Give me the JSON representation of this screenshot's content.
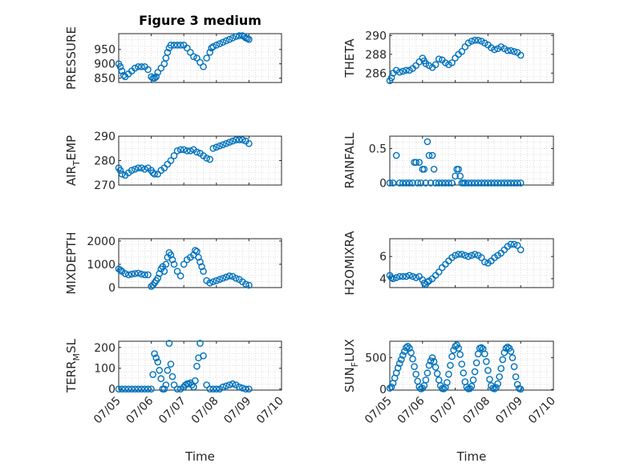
{
  "figure": {
    "title": "Figure 3 medium",
    "xlabel": "Time",
    "marker_color": "#0072BD",
    "xticks": [
      "07/05",
      "07/06",
      "07/07",
      "07/08",
      "07/09",
      "07/10"
    ],
    "xlim": [
      0,
      5
    ]
  },
  "chart_data": [
    {
      "type": "scatter",
      "ylabel": "PRESSURE",
      "ylim": [
        835,
        1005
      ],
      "yticks": [
        850,
        900,
        950
      ],
      "x": [
        0.0,
        0.05,
        0.1,
        0.15,
        0.2,
        0.3,
        0.4,
        0.5,
        0.6,
        0.7,
        0.8,
        0.9,
        1.0,
        1.05,
        1.1,
        1.15,
        1.2,
        1.3,
        1.4,
        1.45,
        1.5,
        1.55,
        1.6,
        1.7,
        1.8,
        1.9,
        2.0,
        2.1,
        2.2,
        2.3,
        2.4,
        2.5,
        2.6,
        2.7,
        2.8,
        2.85,
        2.9,
        3.0,
        3.1,
        3.2,
        3.3,
        3.4,
        3.5,
        3.6,
        3.7,
        3.8,
        3.85,
        3.9,
        3.95,
        4.0
      ],
      "y": [
        900,
        890,
        875,
        860,
        855,
        865,
        875,
        885,
        890,
        890,
        890,
        880,
        855,
        850,
        850,
        855,
        870,
        885,
        900,
        920,
        940,
        955,
        965,
        965,
        965,
        965,
        965,
        955,
        940,
        925,
        920,
        905,
        890,
        920,
        940,
        955,
        960,
        965,
        970,
        975,
        980,
        985,
        990,
        995,
        998,
        998,
        995,
        990,
        988,
        985
      ]
    },
    {
      "type": "scatter",
      "ylabel": "THETA",
      "ylim": [
        285.0,
        290.2
      ],
      "yticks": [
        286,
        288,
        290
      ],
      "x": [
        0.0,
        0.05,
        0.1,
        0.2,
        0.3,
        0.4,
        0.5,
        0.6,
        0.7,
        0.8,
        0.9,
        1.0,
        1.05,
        1.1,
        1.2,
        1.3,
        1.4,
        1.5,
        1.6,
        1.7,
        1.8,
        1.9,
        2.0,
        2.1,
        2.2,
        2.3,
        2.4,
        2.5,
        2.6,
        2.7,
        2.8,
        2.9,
        3.0,
        3.1,
        3.2,
        3.3,
        3.4,
        3.5,
        3.6,
        3.7,
        3.8,
        3.9,
        4.0
      ],
      "y": [
        285.2,
        285.5,
        286.0,
        286.3,
        286.1,
        286.2,
        286.3,
        286.3,
        286.5,
        286.8,
        287.2,
        287.6,
        287.3,
        287.0,
        286.8,
        286.6,
        286.9,
        287.5,
        287.4,
        287.1,
        286.9,
        287.1,
        287.6,
        288.0,
        288.3,
        288.8,
        289.2,
        289.4,
        289.5,
        289.5,
        289.4,
        289.2,
        289.0,
        288.7,
        288.5,
        288.6,
        288.8,
        288.6,
        288.4,
        288.4,
        288.3,
        288.2,
        287.9
      ]
    },
    {
      "type": "scatter",
      "ylabel": "AIR_TEMP",
      "ylim": [
        270,
        290
      ],
      "yticks": [
        270,
        280,
        290
      ],
      "x": [
        0.0,
        0.05,
        0.1,
        0.2,
        0.3,
        0.4,
        0.5,
        0.6,
        0.7,
        0.8,
        0.9,
        1.0,
        1.05,
        1.1,
        1.2,
        1.3,
        1.4,
        1.5,
        1.6,
        1.7,
        1.8,
        1.9,
        2.0,
        2.1,
        2.2,
        2.3,
        2.4,
        2.5,
        2.6,
        2.7,
        2.8,
        2.9,
        3.0,
        3.1,
        3.2,
        3.3,
        3.4,
        3.5,
        3.6,
        3.7,
        3.8,
        3.9,
        4.0
      ],
      "y": [
        277,
        276,
        274.5,
        274,
        275,
        276,
        276.5,
        277,
        277,
        276.5,
        277,
        276,
        275,
        274.5,
        274.5,
        276,
        277,
        278.5,
        280,
        282,
        284,
        284.5,
        284.5,
        284,
        284,
        284.5,
        283.5,
        283,
        282,
        281,
        280.5,
        285,
        285.5,
        286,
        286.5,
        287,
        287.5,
        288,
        288.5,
        288.5,
        288.5,
        288,
        287
      ]
    },
    {
      "type": "scatter",
      "ylabel": "RAINFALL",
      "ylim": [
        -0.03,
        0.68
      ],
      "yticks": [
        0,
        0.5
      ],
      "x": [
        0.0,
        0.1,
        0.2,
        0.3,
        0.4,
        0.5,
        0.6,
        0.7,
        0.75,
        0.8,
        0.85,
        0.9,
        0.95,
        1.0,
        1.05,
        1.1,
        1.15,
        1.2,
        1.25,
        1.3,
        1.35,
        1.4,
        1.5,
        1.6,
        1.7,
        1.8,
        1.9,
        2.0,
        2.05,
        2.1,
        2.15,
        2.2,
        2.25,
        2.3,
        2.4,
        2.5,
        2.6,
        2.7,
        2.8,
        2.9,
        3.0,
        3.1,
        3.2,
        3.3,
        3.4,
        3.5,
        3.6,
        3.7,
        3.8,
        3.9,
        4.0
      ],
      "y": [
        0,
        0,
        0.4,
        0,
        0,
        0,
        0,
        0,
        0.3,
        0.3,
        0,
        0.3,
        0,
        0.2,
        0.2,
        0,
        0.6,
        0.4,
        0,
        0.4,
        0.2,
        0,
        0,
        0,
        0,
        0,
        0,
        0.1,
        0.2,
        0.2,
        0.1,
        0,
        0,
        0,
        0,
        0,
        0,
        0,
        0,
        0,
        0,
        0,
        0,
        0,
        0,
        0,
        0,
        0,
        0,
        0,
        0
      ]
    },
    {
      "type": "scatter",
      "ylabel": "MIXDEPTH",
      "ylim": [
        0,
        2100
      ],
      "yticks": [
        0,
        1000,
        2000
      ],
      "x": [
        0.0,
        0.05,
        0.1,
        0.2,
        0.3,
        0.4,
        0.5,
        0.6,
        0.7,
        0.8,
        0.9,
        1.0,
        1.05,
        1.1,
        1.15,
        1.2,
        1.25,
        1.3,
        1.35,
        1.4,
        1.45,
        1.5,
        1.55,
        1.6,
        1.65,
        1.7,
        1.8,
        1.9,
        2.0,
        2.1,
        2.2,
        2.3,
        2.35,
        2.4,
        2.45,
        2.5,
        2.55,
        2.6,
        2.7,
        2.8,
        2.9,
        3.0,
        3.1,
        3.2,
        3.3,
        3.4,
        3.5,
        3.6,
        3.7,
        3.8,
        3.9,
        4.0
      ],
      "y": [
        800,
        750,
        700,
        600,
        550,
        580,
        600,
        620,
        580,
        550,
        550,
        50,
        100,
        200,
        300,
        400,
        600,
        800,
        900,
        700,
        1000,
        1300,
        1500,
        1400,
        1200,
        1000,
        700,
        500,
        1000,
        1200,
        1300,
        1400,
        1600,
        1550,
        1300,
        1100,
        900,
        700,
        300,
        200,
        250,
        300,
        350,
        400,
        450,
        500,
        480,
        400,
        350,
        250,
        150,
        100
      ]
    },
    {
      "type": "scatter",
      "ylabel": "H2OMIXRA",
      "ylim": [
        3.2,
        7.6
      ],
      "yticks": [
        4,
        6
      ],
      "x": [
        0.0,
        0.05,
        0.1,
        0.2,
        0.3,
        0.4,
        0.5,
        0.6,
        0.7,
        0.8,
        0.9,
        1.0,
        1.05,
        1.1,
        1.15,
        1.2,
        1.3,
        1.4,
        1.5,
        1.6,
        1.7,
        1.8,
        1.9,
        2.0,
        2.1,
        2.2,
        2.3,
        2.4,
        2.5,
        2.6,
        2.7,
        2.8,
        2.9,
        3.0,
        3.1,
        3.2,
        3.3,
        3.4,
        3.5,
        3.6,
        3.7,
        3.8,
        3.9,
        4.0
      ],
      "y": [
        4.3,
        4.1,
        4.0,
        4.1,
        4.2,
        4.2,
        4.2,
        4.3,
        4.2,
        4.1,
        4.2,
        3.9,
        3.6,
        3.5,
        3.7,
        3.8,
        4.0,
        4.3,
        4.6,
        5.0,
        5.3,
        5.6,
        5.9,
        6.1,
        6.2,
        6.2,
        6.1,
        6.0,
        6.1,
        6.2,
        6.1,
        5.9,
        5.5,
        5.4,
        5.6,
        5.9,
        6.1,
        6.3,
        6.6,
        6.9,
        7.1,
        7.1,
        7.0,
        6.6
      ]
    },
    {
      "type": "scatter",
      "ylabel": "TERR_MSL",
      "ylim": [
        -5,
        230
      ],
      "yticks": [
        0,
        100,
        200
      ],
      "x": [
        0.0,
        0.1,
        0.2,
        0.3,
        0.4,
        0.5,
        0.6,
        0.7,
        0.8,
        0.9,
        1.0,
        1.05,
        1.1,
        1.15,
        1.2,
        1.25,
        1.3,
        1.35,
        1.4,
        1.45,
        1.5,
        1.55,
        1.6,
        1.65,
        1.7,
        1.8,
        1.9,
        2.0,
        2.05,
        2.1,
        2.15,
        2.2,
        2.25,
        2.3,
        2.35,
        2.4,
        2.45,
        2.5,
        2.6,
        2.7,
        2.8,
        2.9,
        3.0,
        3.1,
        3.2,
        3.3,
        3.4,
        3.5,
        3.6,
        3.7,
        3.8,
        3.9,
        4.0
      ],
      "y": [
        0,
        0,
        0,
        0,
        0,
        0,
        0,
        0,
        0,
        0,
        0,
        70,
        170,
        150,
        130,
        90,
        50,
        0,
        0,
        20,
        90,
        220,
        120,
        60,
        20,
        0,
        0,
        10,
        20,
        25,
        25,
        30,
        20,
        10,
        40,
        110,
        150,
        220,
        160,
        20,
        0,
        0,
        0,
        0,
        10,
        15,
        20,
        25,
        20,
        10,
        5,
        0,
        0
      ]
    },
    {
      "type": "scatter",
      "ylabel": "SUN_FLUX",
      "ylim": [
        -10,
        760
      ],
      "yticks": [
        0,
        500
      ],
      "x": [
        0.0,
        0.05,
        0.1,
        0.15,
        0.2,
        0.25,
        0.3,
        0.35,
        0.4,
        0.45,
        0.5,
        0.55,
        0.6,
        0.65,
        0.7,
        0.75,
        0.8,
        0.85,
        0.9,
        0.95,
        1.0,
        1.05,
        1.1,
        1.15,
        1.2,
        1.25,
        1.3,
        1.35,
        1.4,
        1.45,
        1.5,
        1.55,
        1.6,
        1.65,
        1.7,
        1.75,
        1.8,
        1.85,
        1.9,
        1.95,
        2.0,
        2.05,
        2.1,
        2.15,
        2.2,
        2.25,
        2.3,
        2.35,
        2.4,
        2.45,
        2.5,
        2.55,
        2.6,
        2.65,
        2.7,
        2.75,
        2.8,
        2.85,
        2.9,
        2.95,
        3.0,
        3.05,
        3.1,
        3.15,
        3.2,
        3.25,
        3.3,
        3.35,
        3.4,
        3.45,
        3.5,
        3.55,
        3.6,
        3.65,
        3.7,
        3.75,
        3.8,
        3.85,
        3.9,
        3.95,
        4.0
      ],
      "y": [
        20,
        40,
        100,
        180,
        260,
        340,
        410,
        470,
        540,
        600,
        660,
        680,
        650,
        580,
        480,
        360,
        240,
        130,
        40,
        10,
        20,
        60,
        150,
        260,
        380,
        450,
        500,
        440,
        350,
        250,
        150,
        60,
        15,
        10,
        30,
        110,
        240,
        380,
        520,
        620,
        680,
        700,
        650,
        550,
        400,
        260,
        120,
        40,
        10,
        15,
        50,
        150,
        280,
        420,
        560,
        650,
        660,
        640,
        560,
        440,
        300,
        160,
        60,
        20,
        10,
        30,
        90,
        200,
        330,
        470,
        580,
        650,
        670,
        650,
        600,
        500,
        360,
        200,
        80,
        15,
        5
      ]
    }
  ]
}
